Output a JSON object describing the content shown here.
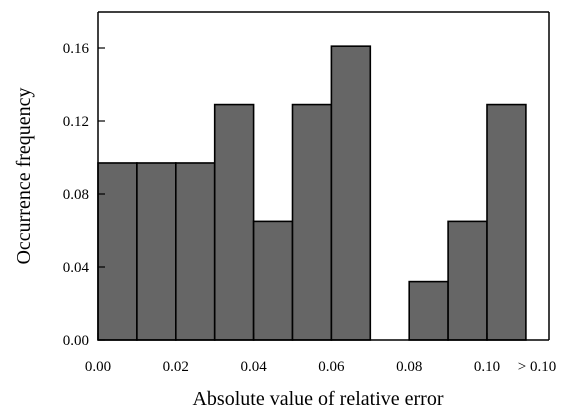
{
  "chart_data": {
    "type": "bar",
    "histogram": true,
    "xlabel": "Absolute value of relative error",
    "ylabel": "Occurrence frequency",
    "xlim": [
      0,
      0.12
    ],
    "ylim": [
      0,
      0.18
    ],
    "x_ticks": [
      0.0,
      0.02,
      0.04,
      0.06,
      0.08,
      0.1
    ],
    "x_tick_labels": [
      "0.00",
      "0.02",
      "0.04",
      "0.06",
      "0.08",
      "0.10"
    ],
    "overflow_label": "> 0.10",
    "y_ticks": [
      0.0,
      0.04,
      0.08,
      0.12,
      0.16
    ],
    "y_tick_labels": [
      "0.00",
      "0.04",
      "0.08",
      "0.12",
      "0.16"
    ],
    "bins": [
      [
        0.0,
        0.01
      ],
      [
        0.01,
        0.02
      ],
      [
        0.02,
        0.03
      ],
      [
        0.03,
        0.04
      ],
      [
        0.04,
        0.05
      ],
      [
        0.05,
        0.06
      ],
      [
        0.06,
        0.07
      ],
      [
        0.07,
        0.08
      ],
      [
        0.08,
        0.09
      ],
      [
        0.09,
        0.1
      ],
      [
        0.1,
        0.11
      ]
    ],
    "values": [
      0.097,
      0.097,
      0.097,
      0.129,
      0.065,
      0.129,
      0.161,
      0.0,
      0.032,
      0.065,
      0.129
    ],
    "grid": false,
    "bar_color": "#666666",
    "bar_edge_color": "#000000"
  }
}
